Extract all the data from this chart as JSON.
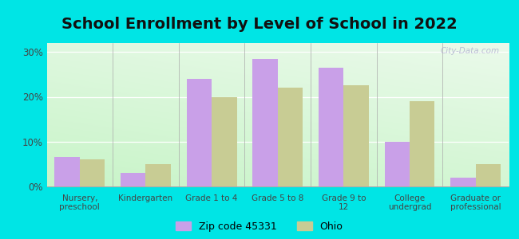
{
  "title": "School Enrollment by Level of School in 2022",
  "categories": [
    "Nursery,\npreschool",
    "Kindergarten",
    "Grade 1 to 4",
    "Grade 5 to 8",
    "Grade 9 to\n12",
    "College\nundergrad",
    "Graduate or\nprofessional"
  ],
  "zip_values": [
    6.5,
    3.0,
    24.0,
    28.5,
    26.5,
    10.0,
    2.0
  ],
  "ohio_values": [
    6.0,
    5.0,
    20.0,
    22.0,
    22.5,
    19.0,
    5.0
  ],
  "zip_color": "#c9a0e8",
  "ohio_color": "#c8cc94",
  "background_outer": "#00e5e5",
  "yticks": [
    0,
    10,
    20,
    30
  ],
  "ylim": [
    0,
    32
  ],
  "legend_zip_label": "Zip code 45331",
  "legend_ohio_label": "Ohio",
  "watermark": "City-Data.com",
  "title_fontsize": 14,
  "bar_width": 0.38,
  "grad_bottom_color": "#c8e6c0",
  "grad_top_color": "#f5fff5"
}
